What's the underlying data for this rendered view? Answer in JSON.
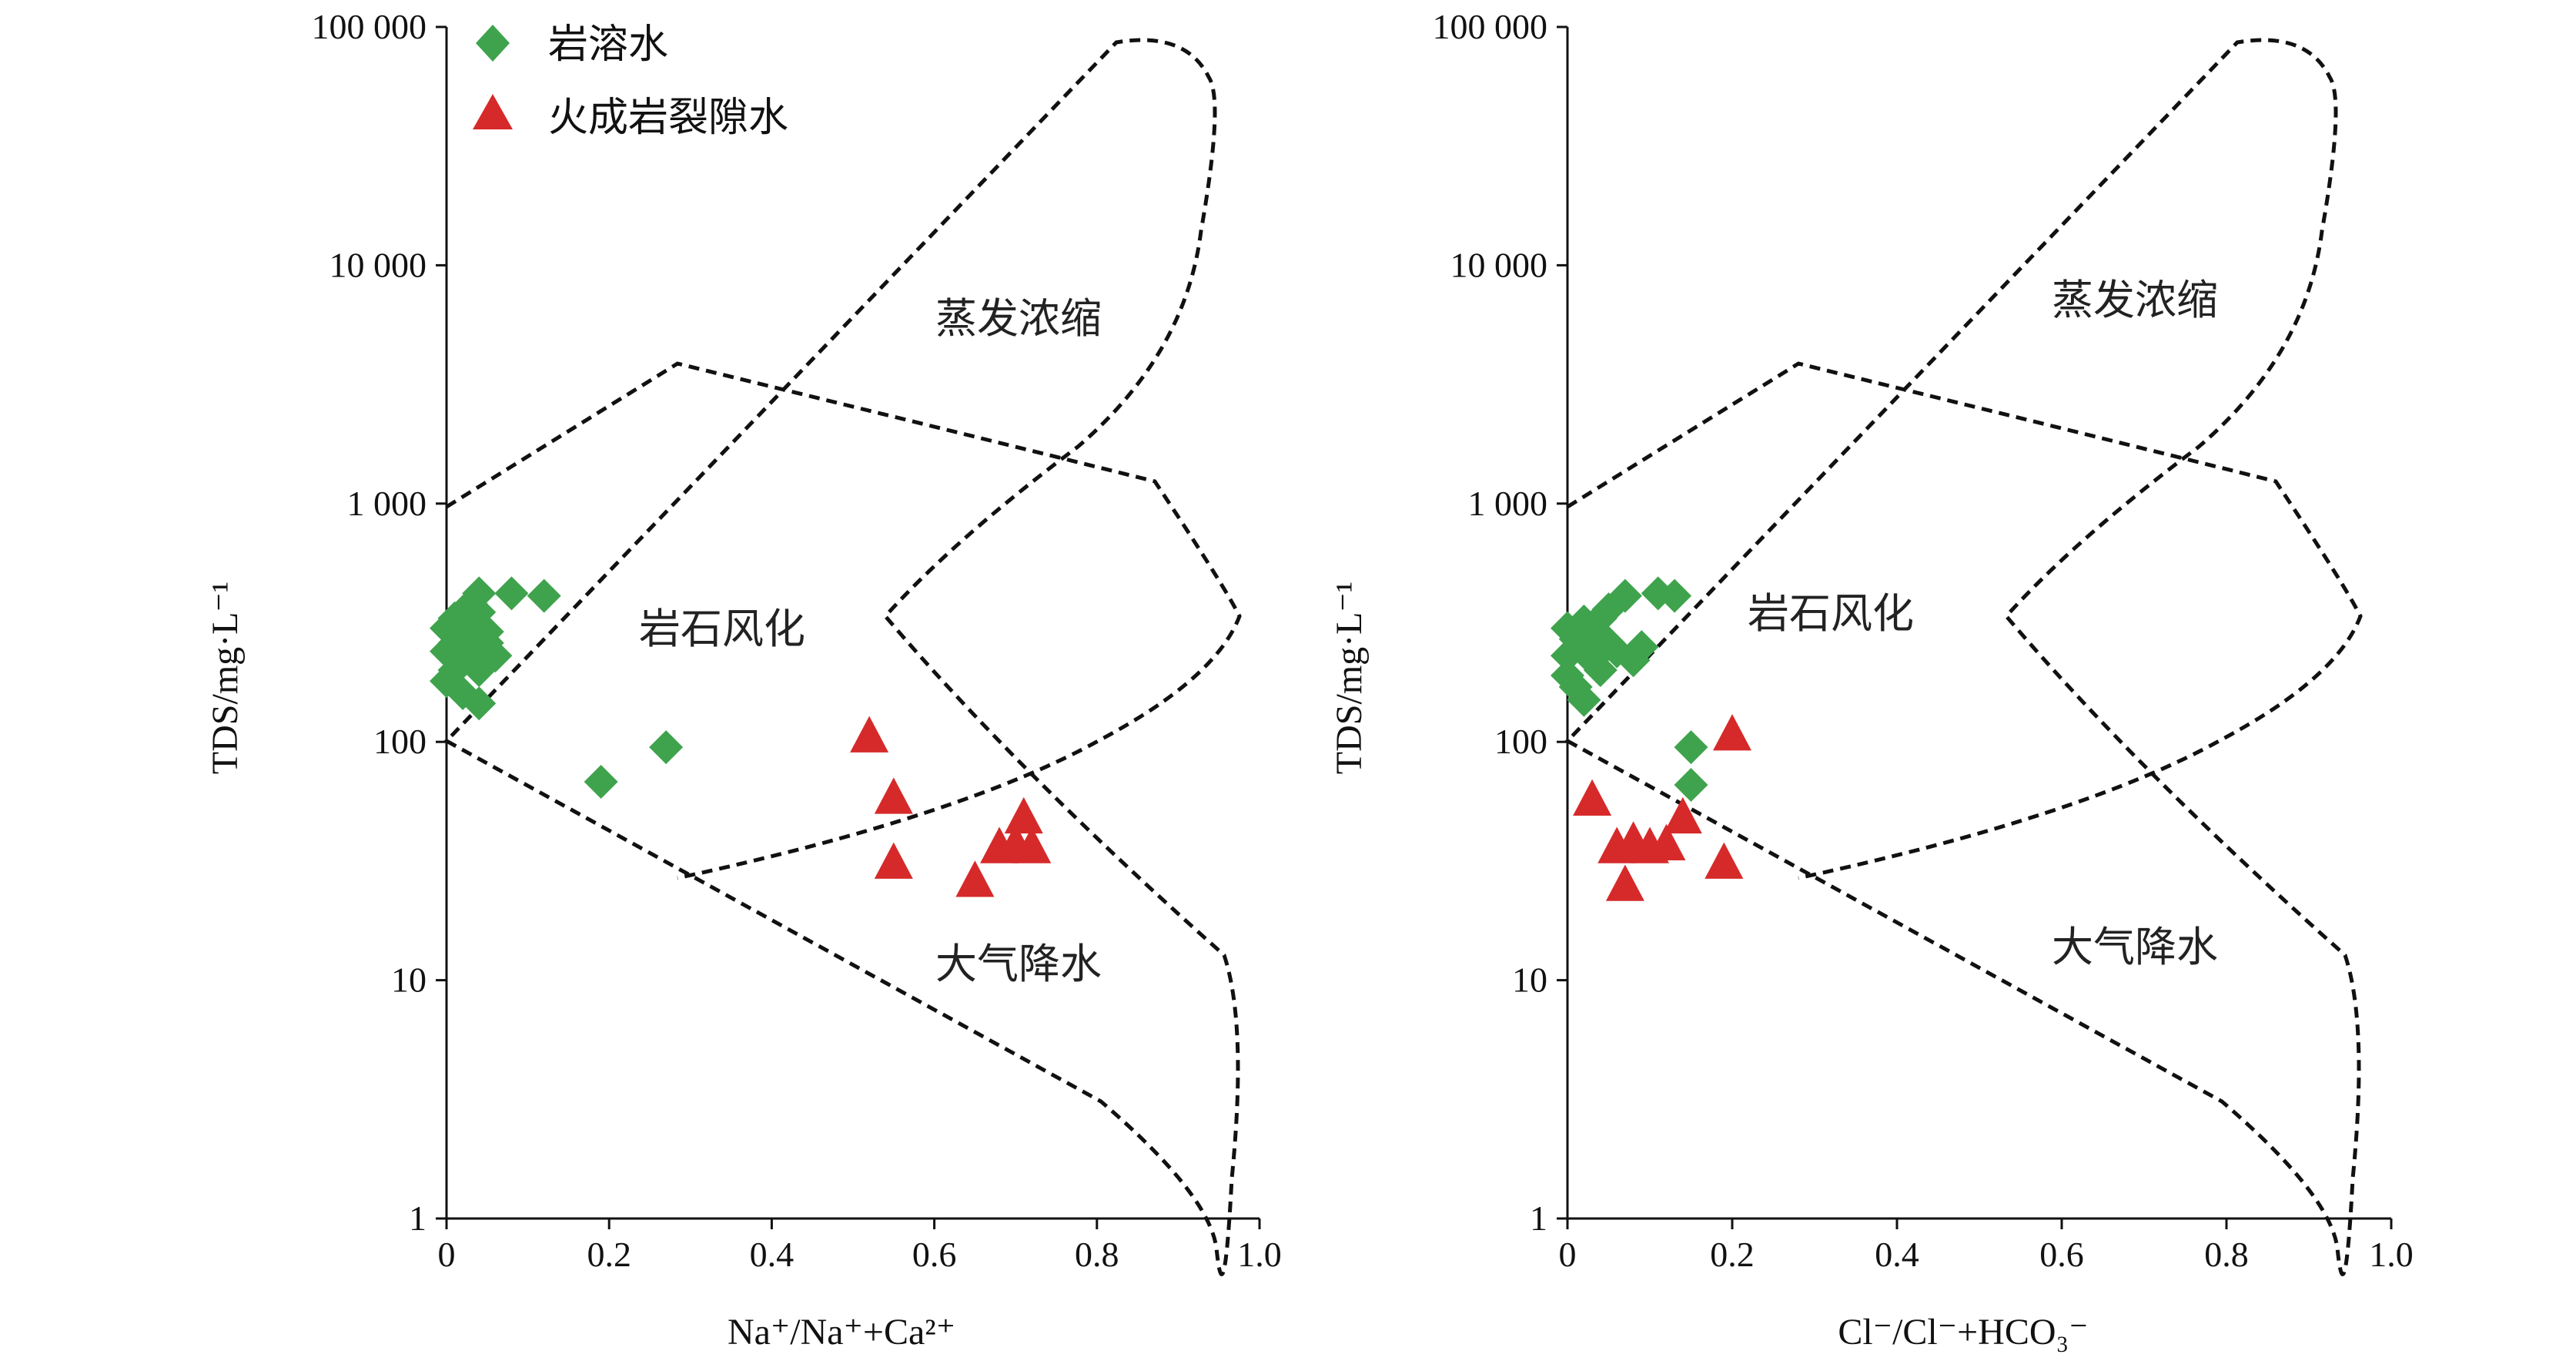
{
  "legend": [
    {
      "label": "岩溶水",
      "marker": "diamond",
      "color": "#3fa34d"
    },
    {
      "label": "火成岩裂隙水",
      "marker": "triangle",
      "color": "#d62a2a"
    }
  ],
  "chart_data": [
    {
      "type": "scatter",
      "xlabel": "Na⁺/Na⁺+Ca²⁺",
      "ylabel": "TDS/mg·L⁻¹",
      "xlim": [
        0,
        1.0
      ],
      "ylim": [
        1,
        100000
      ],
      "yscale": "log",
      "x_ticks": [
        "0",
        "0.2",
        "0.4",
        "0.6",
        "0.8",
        "1.0"
      ],
      "y_ticks": [
        "1",
        "10",
        "100",
        "1 000",
        "10 000",
        "100 000"
      ],
      "region_labels": [
        "蒸发浓缩",
        "岩石风化",
        "大气降水"
      ],
      "series": [
        {
          "name": "岩溶水",
          "marker": "diamond",
          "color": "#3fa34d",
          "points": [
            [
              0.0,
              300
            ],
            [
              0.0,
              240
            ],
            [
              0.0,
              180
            ],
            [
              0.01,
              330
            ],
            [
              0.01,
              260
            ],
            [
              0.01,
              200
            ],
            [
              0.02,
              290
            ],
            [
              0.02,
              220
            ],
            [
              0.02,
              160
            ],
            [
              0.03,
              380
            ],
            [
              0.03,
              310
            ],
            [
              0.03,
              250
            ],
            [
              0.04,
              420
            ],
            [
              0.04,
              350
            ],
            [
              0.04,
              200
            ],
            [
              0.04,
              145
            ],
            [
              0.05,
              290
            ],
            [
              0.05,
              260
            ],
            [
              0.06,
              230
            ],
            [
              0.08,
              420
            ],
            [
              0.12,
              410
            ],
            [
              0.19,
              68
            ],
            [
              0.27,
              95
            ]
          ]
        },
        {
          "name": "火成岩裂隙水",
          "marker": "triangle",
          "color": "#d62a2a",
          "points": [
            [
              0.52,
              105
            ],
            [
              0.55,
              58
            ],
            [
              0.55,
              31
            ],
            [
              0.65,
              26
            ],
            [
              0.68,
              36
            ],
            [
              0.7,
              37
            ],
            [
              0.71,
              48
            ],
            [
              0.72,
              36
            ]
          ]
        }
      ]
    },
    {
      "type": "scatter",
      "xlabel": "Cl⁻/Cl⁻+HCO₃⁻",
      "ylabel": "TDS/mg·L⁻¹",
      "xlim": [
        0,
        1.0
      ],
      "ylim": [
        1,
        100000
      ],
      "yscale": "log",
      "x_ticks": [
        "0",
        "0.2",
        "0.4",
        "0.6",
        "0.8",
        "1.0"
      ],
      "y_ticks": [
        "1",
        "10",
        "100",
        "1 000",
        "10 000",
        "100 000"
      ],
      "region_labels": [
        "蒸发浓缩",
        "岩石风化",
        "大气降水"
      ],
      "series": [
        {
          "name": "岩溶水",
          "marker": "diamond",
          "color": "#3fa34d",
          "points": [
            [
              0.0,
              300
            ],
            [
              0.0,
              230
            ],
            [
              0.0,
              190
            ],
            [
              0.01,
              270
            ],
            [
              0.01,
              170
            ],
            [
              0.02,
              320
            ],
            [
              0.02,
              240
            ],
            [
              0.02,
              150
            ],
            [
              0.03,
              300
            ],
            [
              0.03,
              220
            ],
            [
              0.04,
              330
            ],
            [
              0.04,
              280
            ],
            [
              0.04,
              200
            ],
            [
              0.05,
              360
            ],
            [
              0.05,
              260
            ],
            [
              0.06,
              240
            ],
            [
              0.07,
              410
            ],
            [
              0.08,
              220
            ],
            [
              0.09,
              250
            ],
            [
              0.11,
              420
            ],
            [
              0.13,
              410
            ],
            [
              0.15,
              95
            ],
            [
              0.15,
              66
            ]
          ]
        },
        {
          "name": "火成岩裂隙水",
          "marker": "triangle",
          "color": "#d62a2a",
          "points": [
            [
              0.03,
              57
            ],
            [
              0.06,
              36
            ],
            [
              0.07,
              25
            ],
            [
              0.08,
              38
            ],
            [
              0.1,
              36
            ],
            [
              0.12,
              37
            ],
            [
              0.14,
              48
            ],
            [
              0.19,
              31
            ],
            [
              0.2,
              107
            ]
          ]
        }
      ]
    }
  ]
}
